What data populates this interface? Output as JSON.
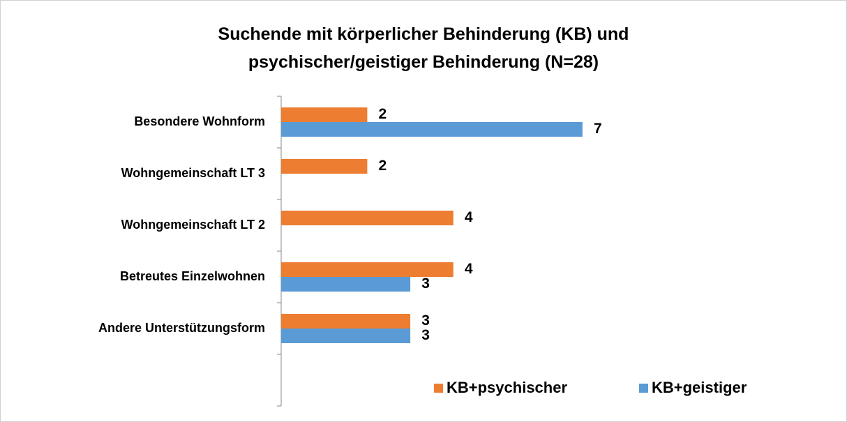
{
  "chart_data": {
    "type": "hbar",
    "title": "Suchende mit körperlicher Behinderung (KB) und psychischer/geistiger Behinderung  (N=28)",
    "categories": [
      "Besondere Wohnform",
      "Wohngemeinschaft LT 3",
      "Wohngemeinschaft LT 2",
      "Betreutes Einzelwohnen",
      "Andere Unterstützungsform",
      null
    ],
    "series": [
      {
        "name": "KB+psychischer",
        "color": "#ED7D31",
        "values": [
          2,
          2,
          4,
          4,
          3,
          null
        ]
      },
      {
        "name": "KB+geistiger",
        "color": "#5B9BD5",
        "values": [
          7,
          null,
          null,
          3,
          3,
          null
        ]
      }
    ],
    "xlim": [
      0,
      13
    ],
    "legend": "bottom-right"
  }
}
